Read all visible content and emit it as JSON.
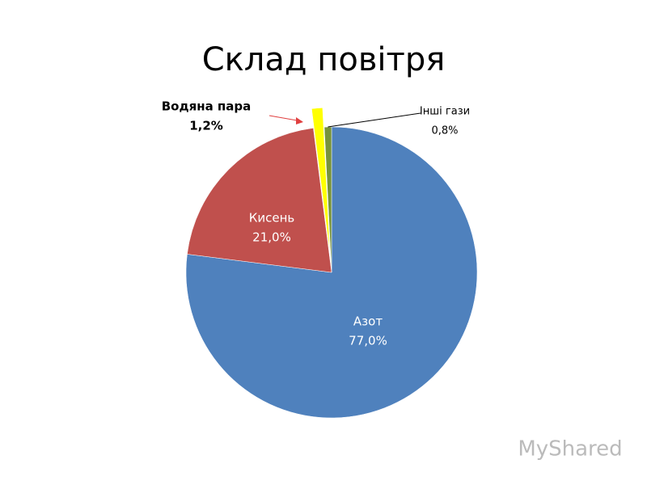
{
  "chart_data": {
    "type": "pie",
    "title": "Склад повітря",
    "categories": [
      "Азот",
      "Кисень",
      "Водяна пара",
      "Інші гази"
    ],
    "values": [
      77.0,
      21.0,
      1.2,
      0.8
    ],
    "value_labels": [
      "77,0%",
      "21,0%",
      "1,2%",
      "0,8%"
    ],
    "colors": [
      "#4f81bd",
      "#c0504d",
      "#ffff00",
      "#77933c"
    ],
    "watermark": "MyShared"
  }
}
